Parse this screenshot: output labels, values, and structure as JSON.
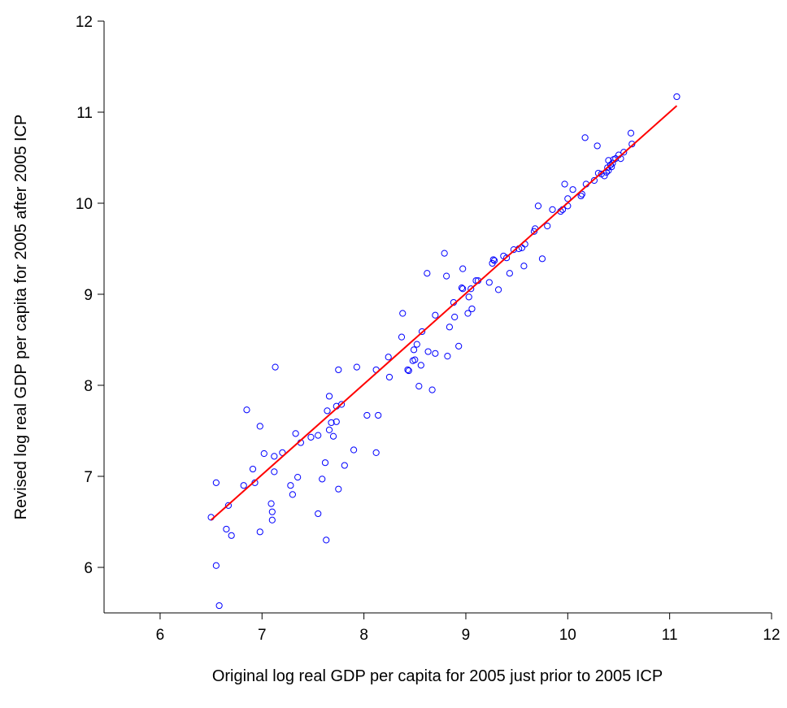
{
  "chart_data": {
    "type": "scatter",
    "x_label": "Original log real GDP per capita for 2005 just prior to 2005 ICP",
    "y_label": "Revised log real GDP per capita for 2005 after 2005 ICP",
    "xlim": [
      5.45,
      12
    ],
    "ylim": [
      5.5,
      12
    ],
    "xticks": [
      6,
      7,
      8,
      9,
      10,
      11,
      12
    ],
    "yticks": [
      6,
      7,
      8,
      9,
      10,
      11,
      12
    ],
    "grid": false,
    "series": [
      {
        "type": "scatter",
        "color": "#0000ff",
        "x": [
          6.5,
          6.55,
          6.55,
          6.58,
          6.67,
          6.65,
          6.7,
          6.82,
          6.85,
          6.91,
          6.93,
          6.98,
          6.98,
          7.02,
          7.09,
          7.1,
          7.1,
          7.12,
          7.12,
          7.13,
          7.2,
          7.28,
          7.3,
          7.33,
          7.35,
          7.38,
          7.48,
          7.55,
          7.55,
          7.59,
          7.62,
          7.63,
          7.64,
          7.66,
          7.66,
          7.68,
          7.7,
          7.73,
          7.73,
          7.75,
          7.75,
          7.78,
          7.81,
          7.9,
          7.93,
          8.03,
          8.12,
          8.12,
          8.14,
          8.24,
          8.25,
          8.37,
          8.38,
          8.43,
          8.44,
          8.48,
          8.49,
          8.5,
          8.52,
          8.54,
          8.56,
          8.57,
          8.62,
          8.63,
          8.67,
          8.7,
          8.7,
          8.79,
          8.81,
          8.82,
          8.84,
          8.88,
          8.89,
          8.93,
          8.96,
          8.97,
          8.97,
          9.02,
          9.03,
          9.05,
          9.06,
          9.1,
          9.12,
          9.23,
          9.26,
          9.27,
          9.28,
          9.32,
          9.37,
          9.4,
          9.43,
          9.47,
          9.52,
          9.55,
          9.57,
          9.58,
          9.67,
          9.68,
          9.71,
          9.75,
          9.8,
          9.85,
          9.93,
          9.95,
          9.97,
          10.0,
          10.0,
          10.05,
          10.13,
          10.14,
          10.17,
          10.18,
          10.26,
          10.29,
          10.3,
          10.33,
          10.36,
          10.38,
          10.39,
          10.4,
          10.4,
          10.42,
          10.43,
          10.44,
          10.45,
          10.47,
          10.5,
          10.52,
          10.55,
          10.62,
          10.63,
          11.07
        ],
        "values": [
          6.55,
          6.93,
          6.02,
          5.58,
          6.68,
          6.42,
          6.35,
          6.9,
          7.73,
          7.08,
          6.93,
          7.55,
          6.39,
          7.25,
          6.7,
          6.61,
          6.52,
          7.22,
          7.05,
          8.2,
          7.26,
          6.9,
          6.8,
          7.47,
          6.99,
          7.37,
          7.43,
          7.45,
          6.59,
          6.97,
          7.15,
          6.3,
          7.72,
          7.88,
          7.51,
          7.59,
          7.44,
          7.77,
          7.6,
          8.17,
          6.86,
          7.79,
          7.12,
          7.29,
          8.2,
          7.67,
          8.17,
          7.26,
          7.67,
          8.31,
          8.09,
          8.53,
          8.79,
          8.17,
          8.16,
          8.27,
          8.39,
          8.28,
          8.45,
          7.99,
          8.22,
          8.59,
          9.23,
          8.37,
          7.95,
          8.77,
          8.35,
          9.45,
          9.2,
          8.32,
          8.64,
          8.91,
          8.75,
          8.43,
          9.07,
          9.28,
          9.06,
          8.79,
          8.97,
          9.06,
          8.84,
          9.15,
          9.15,
          9.13,
          9.34,
          9.38,
          9.37,
          9.05,
          9.42,
          9.4,
          9.23,
          9.49,
          9.5,
          9.51,
          9.31,
          9.55,
          9.69,
          9.72,
          9.97,
          9.39,
          9.75,
          9.93,
          9.91,
          9.93,
          10.21,
          9.97,
          10.05,
          10.15,
          10.08,
          10.1,
          10.72,
          10.21,
          10.25,
          10.63,
          10.33,
          10.32,
          10.3,
          10.34,
          10.39,
          10.36,
          10.47,
          10.42,
          10.4,
          10.44,
          10.48,
          10.49,
          10.53,
          10.49,
          10.56,
          10.77,
          10.65,
          11.17
        ]
      },
      {
        "type": "line",
        "color": "#ff0000",
        "x": [
          6.5,
          11.07
        ],
        "values": [
          6.52,
          11.07
        ]
      }
    ]
  }
}
